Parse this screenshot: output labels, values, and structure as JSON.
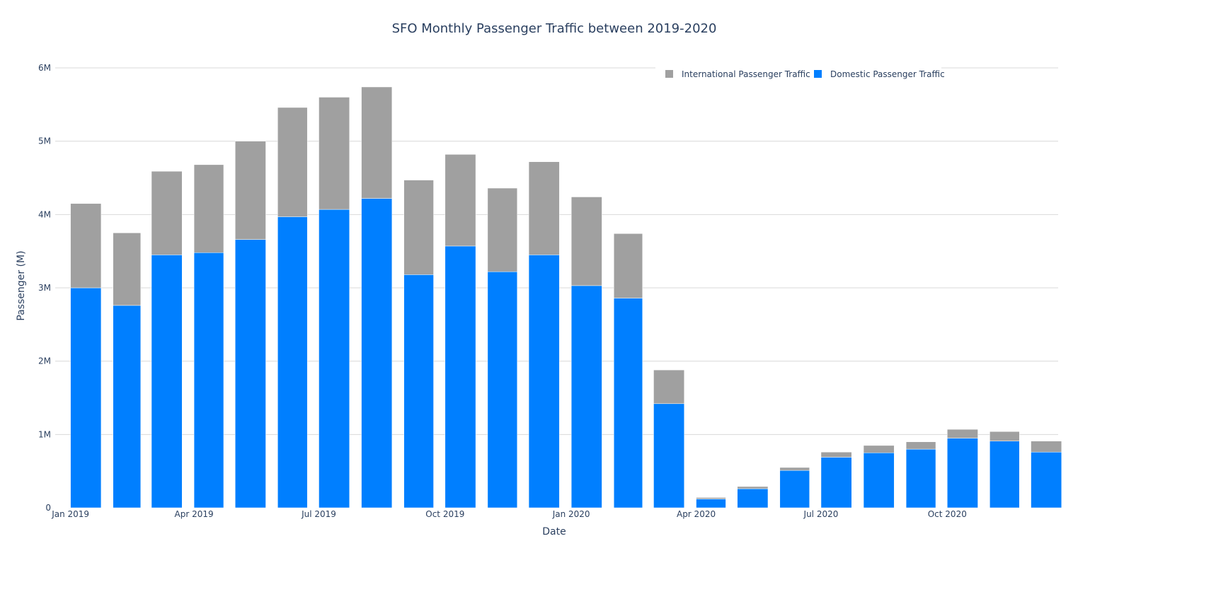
{
  "chart_data": {
    "type": "bar",
    "barmode": "stack",
    "title": "SFO Monthly Passenger Traffic between 2019-2020",
    "xlabel": "Date",
    "ylabel": "Passenger (M)",
    "ylim": [
      0,
      6000000
    ],
    "grid": true,
    "legend_placement": "top-right",
    "yticks": [
      {
        "value": 0,
        "label": "0"
      },
      {
        "value": 1000000,
        "label": "1M"
      },
      {
        "value": 2000000,
        "label": "2M"
      },
      {
        "value": 3000000,
        "label": "3M"
      },
      {
        "value": 4000000,
        "label": "4M"
      },
      {
        "value": 5000000,
        "label": "5M"
      },
      {
        "value": 6000000,
        "label": "6M"
      }
    ],
    "xticks": [
      {
        "date": "2019-01-01",
        "label": "Jan 2019"
      },
      {
        "date": "2019-04-01",
        "label": "Apr 2019"
      },
      {
        "date": "2019-07-01",
        "label": "Jul 2019"
      },
      {
        "date": "2019-10-01",
        "label": "Oct 2019"
      },
      {
        "date": "2020-01-01",
        "label": "Jan 2020"
      },
      {
        "date": "2020-04-01",
        "label": "Apr 2020"
      },
      {
        "date": "2020-07-01",
        "label": "Jul 2020"
      },
      {
        "date": "2020-10-01",
        "label": "Oct 2020"
      }
    ],
    "x": [
      "2019-01-01",
      "2019-02-01",
      "2019-03-01",
      "2019-04-01",
      "2019-05-01",
      "2019-06-01",
      "2019-07-01",
      "2019-08-01",
      "2019-09-01",
      "2019-10-01",
      "2019-11-01",
      "2019-12-01",
      "2020-01-01",
      "2020-02-01",
      "2020-03-01",
      "2020-04-01",
      "2020-05-01",
      "2020-06-01",
      "2020-07-01",
      "2020-08-01",
      "2020-09-01",
      "2020-10-01",
      "2020-11-01",
      "2020-12-01"
    ],
    "series": [
      {
        "name": "Domestic Passenger Traffic",
        "color": "#007fff",
        "values": [
          3000000,
          2760000,
          3450000,
          3480000,
          3660000,
          3970000,
          4070000,
          4220000,
          3180000,
          3570000,
          3220000,
          3450000,
          3030000,
          2860000,
          1420000,
          120000,
          260000,
          510000,
          690000,
          750000,
          800000,
          950000,
          910000,
          760000
        ]
      },
      {
        "name": "International Passenger Traffic",
        "color": "#a0a0a0",
        "values": [
          1150000,
          990000,
          1140000,
          1200000,
          1340000,
          1490000,
          1530000,
          1520000,
          1290000,
          1250000,
          1140000,
          1270000,
          1210000,
          880000,
          460000,
          20000,
          30000,
          40000,
          70000,
          100000,
          100000,
          120000,
          130000,
          150000
        ]
      }
    ],
    "legend_order": [
      "International Passenger Traffic",
      "Domestic Passenger Traffic"
    ]
  }
}
